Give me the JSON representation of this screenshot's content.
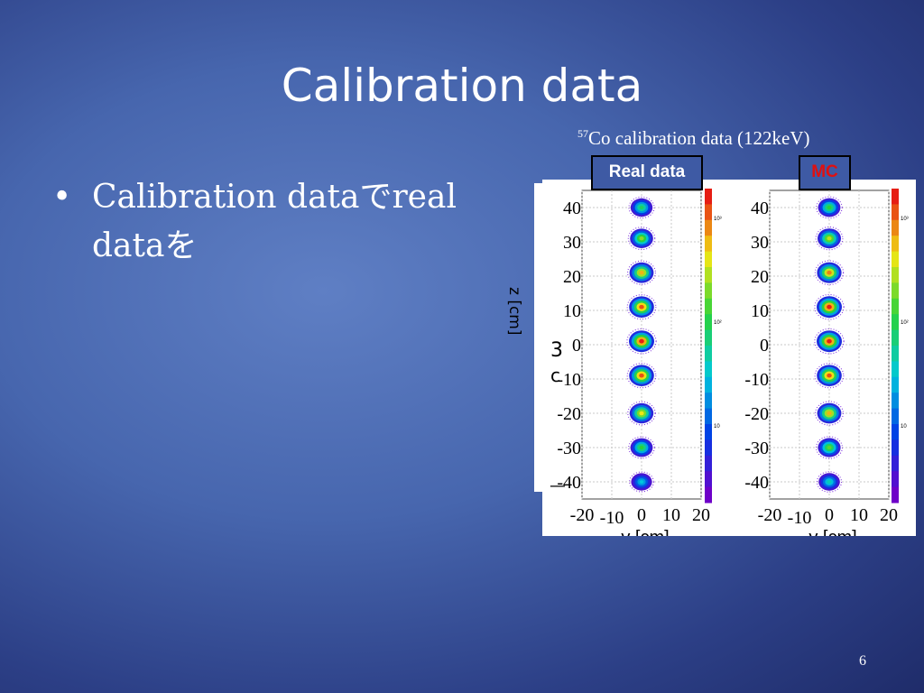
{
  "slide": {
    "title": "Calibration data",
    "bullet_marker": "•",
    "bullet_text": "Calibration dataでreal dataを",
    "page_number": "6"
  },
  "figure": {
    "caption_sup": "57",
    "caption_text": "Co calibration data (122keV)",
    "real_label": "Real data",
    "mc_label": "MC",
    "left_fragments": [
      "z [cm]",
      "3",
      "c",
      "—"
    ]
  },
  "chart_data": [
    {
      "type": "heatmap",
      "title": "Real data",
      "xlabel": "y [cm]",
      "ylabel": "",
      "xlim": [
        -20,
        20
      ],
      "ylim": [
        -45,
        45
      ],
      "x_tick_labels": [
        "-20",
        "-10",
        "0",
        "10",
        "20"
      ],
      "y_tick_labels": [
        "40",
        "30",
        "20",
        "10",
        "0",
        "-10",
        "-20",
        "-30",
        "-40"
      ],
      "colorbar_tick_labels": [
        "10³",
        "10²",
        "10"
      ],
      "clusters": [
        {
          "y": 0,
          "z": 40,
          "intensity": 0.55
        },
        {
          "y": 0,
          "z": 31,
          "intensity": 0.7
        },
        {
          "y": 0,
          "z": 21,
          "intensity": 0.85
        },
        {
          "y": 0,
          "z": 11,
          "intensity": 0.95
        },
        {
          "y": 0,
          "z": 1,
          "intensity": 1.0
        },
        {
          "y": 0,
          "z": -9,
          "intensity": 0.95
        },
        {
          "y": 0,
          "z": -20,
          "intensity": 0.8
        },
        {
          "y": 0,
          "z": -30,
          "intensity": 0.6
        },
        {
          "y": 0,
          "z": -40,
          "intensity": 0.4
        }
      ]
    },
    {
      "type": "heatmap",
      "title": "MC",
      "xlabel": "y [cm]",
      "ylabel": "",
      "xlim": [
        -20,
        20
      ],
      "ylim": [
        -45,
        45
      ],
      "x_tick_labels": [
        "-20",
        "-10",
        "0",
        "10",
        "20"
      ],
      "y_tick_labels": [
        "40",
        "30",
        "20",
        "10",
        "0",
        "-10",
        "-20",
        "-30",
        "-40"
      ],
      "colorbar_tick_labels": [
        "10³",
        "10²",
        "10"
      ],
      "clusters": [
        {
          "y": 0,
          "z": 40,
          "intensity": 0.6
        },
        {
          "y": 0,
          "z": 31,
          "intensity": 0.75
        },
        {
          "y": 0,
          "z": 21,
          "intensity": 0.9
        },
        {
          "y": 0,
          "z": 11,
          "intensity": 1.0
        },
        {
          "y": 0,
          "z": 1,
          "intensity": 1.0
        },
        {
          "y": 0,
          "z": -9,
          "intensity": 0.95
        },
        {
          "y": 0,
          "z": -20,
          "intensity": 0.85
        },
        {
          "y": 0,
          "z": -30,
          "intensity": 0.65
        },
        {
          "y": 0,
          "z": -40,
          "intensity": 0.45
        }
      ]
    }
  ]
}
